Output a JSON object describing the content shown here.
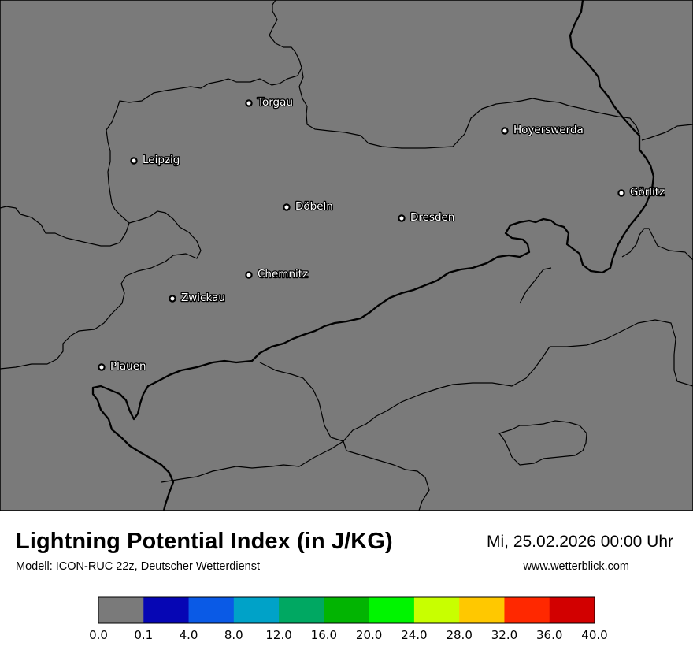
{
  "title": "Lightning Potential Index (in J/KG)",
  "model": "Modell: ICON-RUC 22z, Deutscher Wetterdienst",
  "datetime": "Mi, 25.02.2026 00:00 Uhr",
  "website": "www.wetterblick.com",
  "map_background": "#7a7a7a",
  "cities": [
    {
      "name": "Torgau"
    },
    {
      "name": "Hoyerswerda"
    },
    {
      "name": "Leipzig"
    },
    {
      "name": "Görlitz"
    },
    {
      "name": "Döbeln"
    },
    {
      "name": "Dresden"
    },
    {
      "name": "Chemnitz"
    },
    {
      "name": "Zwickau"
    },
    {
      "name": "Plauen"
    }
  ],
  "legend": {
    "colors": [
      "#7a7a7a",
      "#0606b4",
      "#0a5ae6",
      "#00a2c8",
      "#00a862",
      "#02b402",
      "#00f500",
      "#c8ff00",
      "#ffc800",
      "#ff2800",
      "#d20000"
    ],
    "ticks": [
      "0.0",
      "0.1",
      "4.0",
      "8.0",
      "12.0",
      "16.0",
      "20.0",
      "24.0",
      "28.0",
      "32.0",
      "36.0",
      "40.0"
    ]
  }
}
